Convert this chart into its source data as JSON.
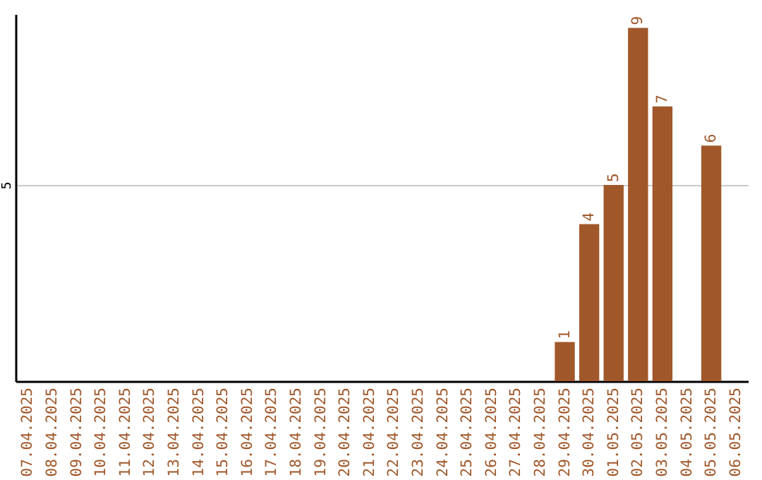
{
  "chart_data": {
    "type": "bar",
    "categories": [
      "07.04.2025",
      "08.04.2025",
      "09.04.2025",
      "10.04.2025",
      "11.04.2025",
      "12.04.2025",
      "13.04.2025",
      "14.04.2025",
      "15.04.2025",
      "16.04.2025",
      "17.04.2025",
      "18.04.2025",
      "19.04.2025",
      "20.04.2025",
      "21.04.2025",
      "22.04.2025",
      "23.04.2025",
      "24.04.2025",
      "25.04.2025",
      "26.04.2025",
      "27.04.2025",
      "28.04.2025",
      "29.04.2025",
      "30.04.2025",
      "01.05.2025",
      "02.05.2025",
      "03.05.2025",
      "04.05.2025",
      "05.05.2025",
      "06.05.2025"
    ],
    "values": [
      null,
      null,
      null,
      null,
      null,
      null,
      null,
      null,
      null,
      null,
      null,
      null,
      null,
      null,
      null,
      null,
      null,
      null,
      null,
      null,
      null,
      null,
      1,
      4,
      5,
      9,
      7,
      null,
      6,
      null
    ],
    "color": "#a0582a",
    "ylim": [
      0,
      9.35
    ],
    "yticks": [
      5
    ],
    "grid": "y",
    "data_labels": true
  }
}
